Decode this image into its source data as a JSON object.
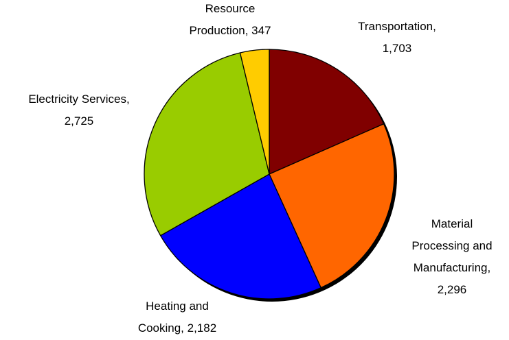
{
  "chart_data": {
    "type": "pie",
    "values": [
      1703,
      2296,
      2182,
      2725,
      347
    ],
    "value_labels": [
      [
        "Transportation,",
        "1,703"
      ],
      [
        "Material",
        "Processing and",
        "Manufacturing,",
        "2,296"
      ],
      [
        "Heating and",
        "Cooking, 2,182"
      ],
      [
        "Electricity Services,",
        "2,725"
      ],
      [
        "Resource",
        "Production, 347"
      ]
    ],
    "colors": [
      "#800000",
      "#ff6600",
      "#0000ff",
      "#99cc00",
      "#ffcc00"
    ],
    "start_angle": 0,
    "direction": "clockwise"
  }
}
